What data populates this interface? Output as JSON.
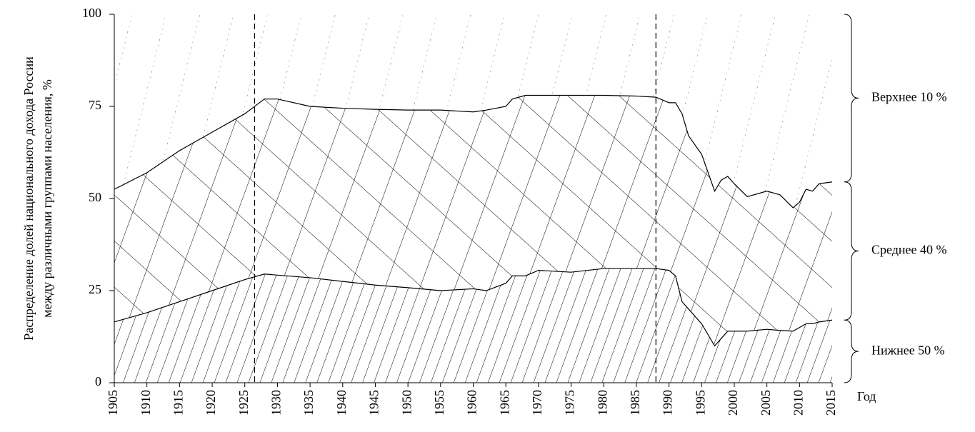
{
  "chart_data": {
    "type": "stacked_area",
    "ylabel": [
      "Распределение долей национального дохода России",
      "между различными группами населения, %"
    ],
    "xlabel": "Год",
    "x": [
      1905,
      1910,
      1915,
      1920,
      1925,
      1928,
      1930,
      1935,
      1940,
      1945,
      1950,
      1955,
      1960,
      1962,
      1965,
      1966,
      1968,
      1970,
      1975,
      1980,
      1985,
      1988,
      1990,
      1991,
      1992,
      1993,
      1995,
      1997,
      1998,
      1999,
      2000,
      2002,
      2005,
      2007,
      2009,
      2010,
      2011,
      2012,
      2013,
      2015
    ],
    "series": [
      {
        "name": "Нижнее 50 %",
        "color": "#000000",
        "values": [
          16.5,
          19,
          22,
          25,
          28,
          29.5,
          29.2,
          28.5,
          27.5,
          26.5,
          25.8,
          25,
          25.5,
          25,
          27,
          29,
          29,
          30.5,
          30,
          31,
          31,
          31,
          30.5,
          29,
          22,
          20,
          16,
          10,
          12,
          14,
          14,
          14,
          14.5,
          14.2,
          14,
          15,
          16,
          16,
          16.5,
          17
        ]
      },
      {
        "name": "Среднее 40 %",
        "color": "#000000",
        "values": [
          36,
          38,
          41,
          43,
          45,
          47.5,
          47.8,
          46.5,
          47,
          47.7,
          48.2,
          49,
          48,
          49,
          48,
          48,
          49,
          47.5,
          48,
          47,
          46.8,
          46.5,
          45.5,
          47,
          51,
          47,
          46,
          42,
          43,
          42,
          40,
          36.5,
          37.5,
          36.8,
          33.5,
          34,
          36.5,
          36,
          37.5,
          37.5
        ]
      },
      {
        "name": "Верхнее 10 %",
        "color": "#000000",
        "values": [
          47.5,
          43,
          37,
          32,
          27,
          23,
          23,
          25,
          25.5,
          25.8,
          26,
          26,
          26.5,
          26,
          25,
          23,
          22,
          22,
          22,
          22,
          22.2,
          22.5,
          24,
          24,
          27,
          33,
          38,
          48,
          45,
          44,
          46,
          49.5,
          48,
          49,
          52.5,
          51,
          47.5,
          48,
          46,
          45.5
        ]
      }
    ],
    "xlim": [
      1905,
      2015
    ],
    "xticks": [
      1905,
      1910,
      1915,
      1920,
      1925,
      1930,
      1935,
      1940,
      1945,
      1950,
      1955,
      1960,
      1965,
      1970,
      1975,
      1980,
      1985,
      1990,
      1995,
      2000,
      2005,
      2010,
      2015
    ],
    "ylim": [
      0,
      100
    ],
    "yticks": [
      0,
      25,
      50,
      75,
      100
    ],
    "vlines": [
      1926.5,
      1988
    ]
  }
}
